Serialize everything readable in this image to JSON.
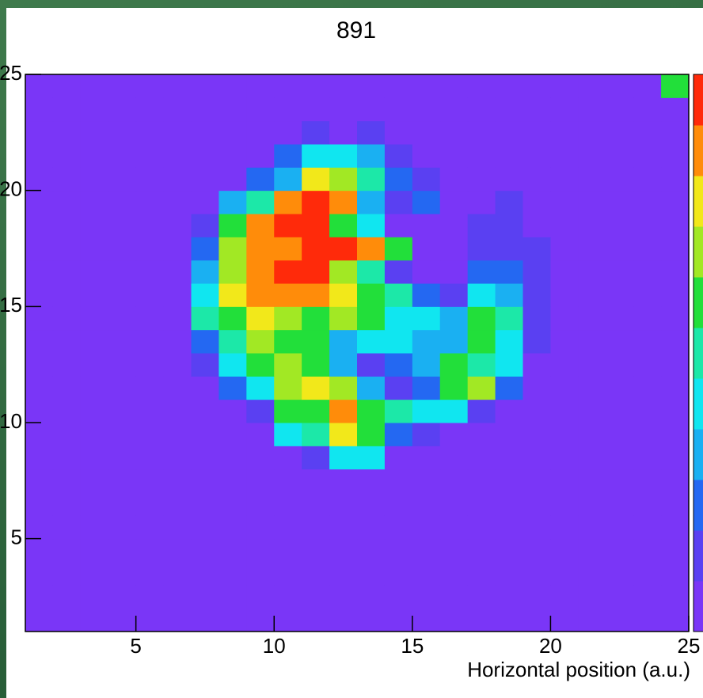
{
  "chart_data": {
    "type": "heatmap",
    "title": "891",
    "xlabel": "Horizontal position (a.u.)",
    "xlim": [
      1,
      25
    ],
    "ylim": [
      1,
      25
    ],
    "xticks": [
      5,
      10,
      15,
      20,
      25
    ],
    "yticks": [
      5,
      10,
      15,
      20,
      25
    ],
    "zlim": [
      0,
      10
    ],
    "palette": [
      "#7a36f7",
      "#5a40f2",
      "#2468f2",
      "#1ab0f2",
      "#10e6f0",
      "#1ce8a8",
      "#22df3a",
      "#a2e824",
      "#f2e81a",
      "#ff8c0a",
      "#ff2a0a"
    ],
    "z": [
      [
        0,
        0,
        0,
        0,
        0,
        0,
        0,
        0,
        0,
        0,
        0,
        0,
        0,
        0,
        0,
        0,
        0,
        0,
        0,
        0,
        0,
        0,
        0,
        0
      ],
      [
        0,
        0,
        0,
        0,
        0,
        0,
        0,
        0,
        0,
        0,
        0,
        0,
        0,
        0,
        0,
        0,
        0,
        0,
        0,
        0,
        0,
        0,
        0,
        0
      ],
      [
        0,
        0,
        0,
        0,
        0,
        0,
        0,
        0,
        0,
        0,
        0,
        0,
        0,
        0,
        0,
        0,
        0,
        0,
        0,
        0,
        0,
        0,
        0,
        0
      ],
      [
        0,
        0,
        0,
        0,
        0,
        0,
        0,
        0,
        0,
        0,
        0,
        0,
        0,
        0,
        0,
        0,
        0,
        0,
        0,
        0,
        0,
        0,
        0,
        0
      ],
      [
        0,
        0,
        0,
        0,
        0,
        0,
        0,
        0,
        0,
        0,
        0,
        0,
        0,
        0,
        0,
        0,
        0,
        0,
        0,
        0,
        0,
        0,
        0,
        0
      ],
      [
        0,
        0,
        0,
        0,
        0,
        0,
        0,
        0,
        0,
        0,
        0,
        0,
        0,
        0,
        0,
        0,
        0,
        0,
        0,
        0,
        0,
        0,
        0,
        0
      ],
      [
        0,
        0,
        0,
        0,
        0,
        0,
        0,
        0,
        0,
        0,
        0,
        0,
        0,
        0,
        0,
        0,
        0,
        0,
        0,
        0,
        0,
        0,
        0,
        0
      ],
      [
        0,
        0,
        0,
        0,
        0,
        0,
        0,
        0,
        0,
        0,
        1,
        4,
        4,
        0,
        0,
        0,
        0,
        0,
        0,
        0,
        0,
        0,
        0,
        0
      ],
      [
        0,
        0,
        0,
        0,
        0,
        0,
        0,
        0,
        0,
        4,
        5,
        8,
        6,
        2,
        1,
        0,
        0,
        0,
        0,
        0,
        0,
        0,
        0,
        0
      ],
      [
        0,
        0,
        0,
        0,
        0,
        0,
        0,
        0,
        1,
        6,
        6,
        9,
        6,
        5,
        4,
        4,
        1,
        0,
        0,
        0,
        0,
        0,
        0,
        0
      ],
      [
        0,
        0,
        0,
        0,
        0,
        0,
        0,
        2,
        4,
        7,
        8,
        7,
        3,
        1,
        2,
        6,
        7,
        2,
        0,
        0,
        0,
        0,
        0,
        0
      ],
      [
        0,
        0,
        0,
        0,
        0,
        0,
        1,
        4,
        6,
        7,
        6,
        3,
        1,
        2,
        3,
        6,
        5,
        4,
        0,
        0,
        0,
        0,
        0,
        0
      ],
      [
        0,
        0,
        0,
        0,
        0,
        0,
        2,
        5,
        7,
        6,
        6,
        3,
        4,
        4,
        3,
        3,
        6,
        4,
        1,
        0,
        0,
        0,
        0,
        0
      ],
      [
        0,
        0,
        0,
        0,
        0,
        0,
        5,
        6,
        8,
        7,
        6,
        7,
        6,
        4,
        4,
        3,
        6,
        5,
        1,
        0,
        0,
        0,
        0,
        0
      ],
      [
        0,
        0,
        0,
        0,
        0,
        0,
        4,
        8,
        9,
        9,
        9,
        8,
        6,
        5,
        2,
        1,
        4,
        3,
        1,
        0,
        0,
        0,
        0,
        0
      ],
      [
        0,
        0,
        0,
        0,
        0,
        0,
        3,
        7,
        9,
        10,
        10,
        7,
        5,
        1,
        0,
        0,
        2,
        2,
        1,
        0,
        0,
        0,
        0,
        0
      ],
      [
        0,
        0,
        0,
        0,
        0,
        0,
        2,
        7,
        9,
        9,
        10,
        10,
        9,
        6,
        0,
        0,
        1,
        1,
        1,
        0,
        0,
        0,
        0,
        0
      ],
      [
        0,
        0,
        0,
        0,
        0,
        0,
        1,
        6,
        9,
        10,
        10,
        6,
        4,
        0,
        0,
        0,
        1,
        1,
        0,
        0,
        0,
        0,
        0,
        0
      ],
      [
        0,
        0,
        0,
        0,
        0,
        0,
        0,
        3,
        5,
        9,
        10,
        9,
        3,
        1,
        2,
        0,
        0,
        1,
        0,
        0,
        0,
        0,
        0,
        0
      ],
      [
        0,
        0,
        0,
        0,
        0,
        0,
        0,
        0,
        2,
        3,
        8,
        7,
        5,
        2,
        1,
        0,
        0,
        0,
        0,
        0,
        0,
        0,
        0,
        0
      ],
      [
        0,
        0,
        0,
        0,
        0,
        0,
        0,
        0,
        0,
        2,
        4,
        4,
        3,
        1,
        0,
        0,
        0,
        0,
        0,
        0,
        0,
        0,
        0,
        0
      ],
      [
        0,
        0,
        0,
        0,
        0,
        0,
        0,
        0,
        0,
        0,
        1,
        0,
        1,
        0,
        0,
        0,
        0,
        0,
        0,
        0,
        0,
        0,
        0,
        0
      ],
      [
        0,
        0,
        0,
        0,
        0,
        0,
        0,
        0,
        0,
        0,
        0,
        0,
        0,
        0,
        0,
        0,
        0,
        0,
        0,
        0,
        0,
        0,
        0,
        0
      ],
      [
        0,
        0,
        0,
        0,
        0,
        0,
        0,
        0,
        0,
        0,
        0,
        0,
        0,
        0,
        0,
        0,
        0,
        0,
        0,
        0,
        0,
        0,
        0,
        6
      ]
    ]
  }
}
